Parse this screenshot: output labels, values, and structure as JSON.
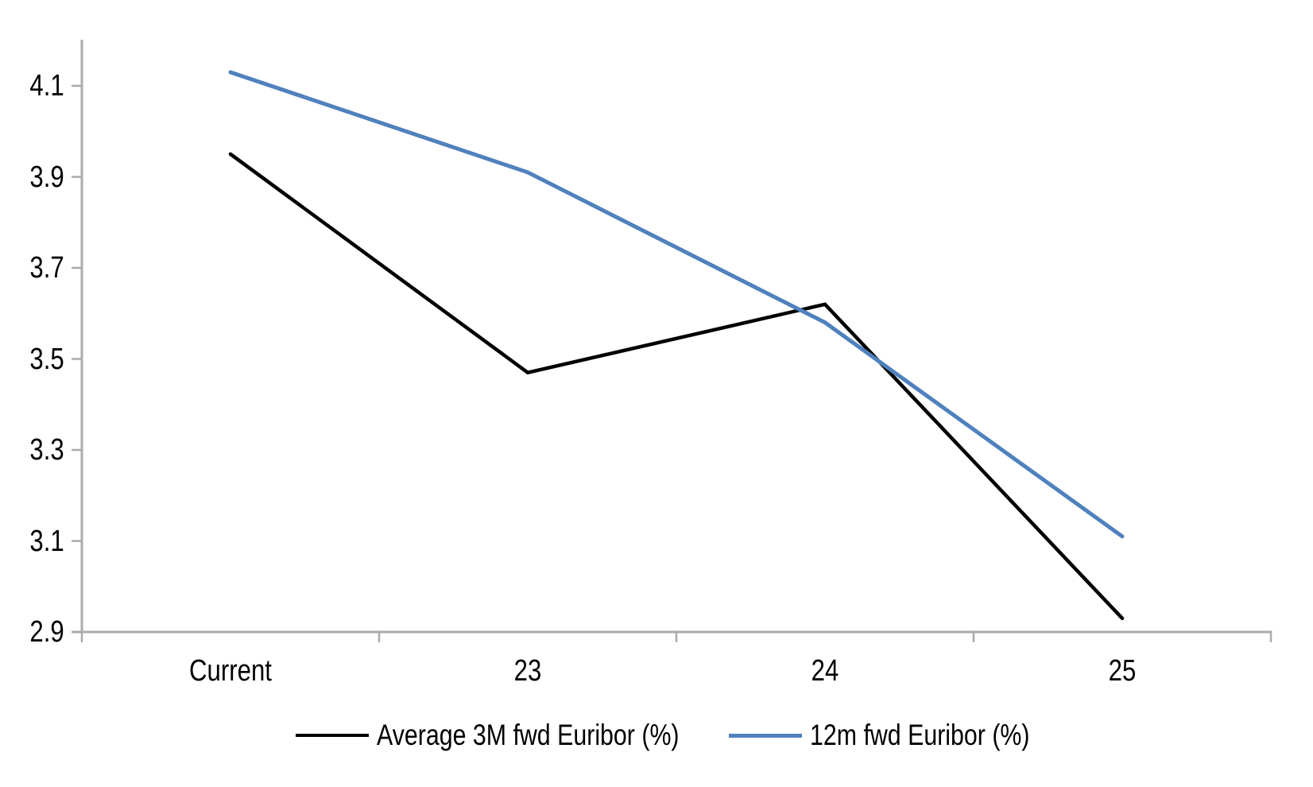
{
  "chart_data": {
    "type": "line",
    "categories": [
      "Current",
      "23",
      "24",
      "25"
    ],
    "series": [
      {
        "name": "Average 3M fwd Euribor (%)",
        "color": "#000000",
        "line_width": 4.5,
        "values": [
          3.95,
          3.47,
          3.62,
          2.93
        ]
      },
      {
        "name": "12m fwd Euribor (%)",
        "color": "#4f81bd",
        "line_width": 5,
        "values": [
          4.13,
          3.91,
          3.58,
          3.11
        ]
      }
    ],
    "yticks": [
      4.1,
      3.9,
      3.7,
      3.5,
      3.3,
      3.1,
      2.9
    ],
    "ytick_format_decimals": 1,
    "ylim": [
      2.9,
      4.1
    ],
    "grid": false,
    "legend_position": "bottom",
    "axis_color": "#ababab",
    "background_color": "#ffffff",
    "text_color": "#000000"
  }
}
